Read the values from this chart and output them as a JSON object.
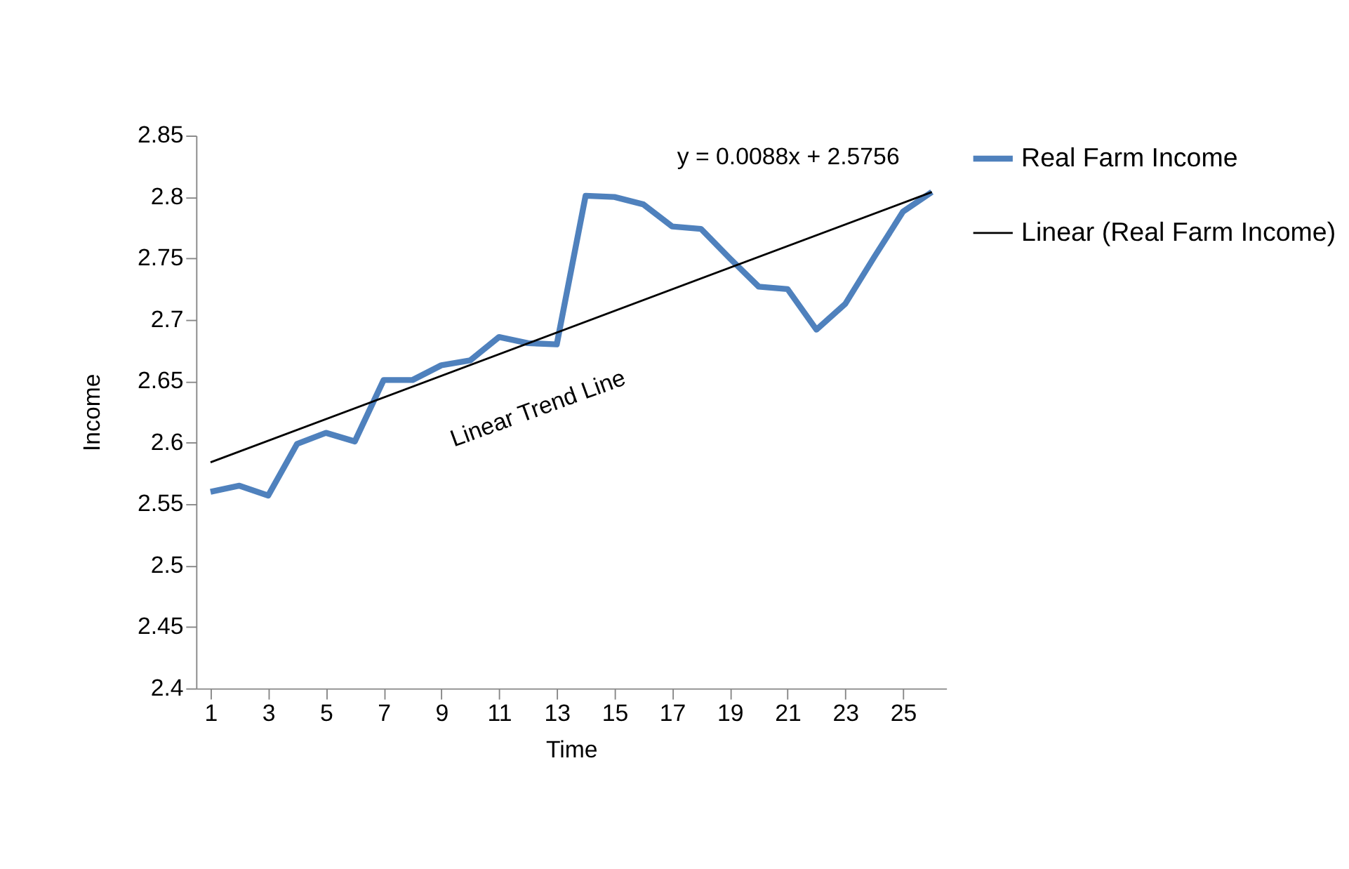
{
  "chart_data": {
    "type": "line",
    "xlabel": "Time",
    "ylabel": "Income",
    "x": [
      1,
      2,
      3,
      4,
      5,
      6,
      7,
      8,
      9,
      10,
      11,
      12,
      13,
      14,
      15,
      16,
      17,
      18,
      19,
      20,
      21,
      22,
      23,
      24,
      25,
      26
    ],
    "series": [
      {
        "name": "Real Farm Income",
        "color": "#4f81bd",
        "values": [
          2.56,
          2.565,
          2.557,
          2.599,
          2.608,
          2.601,
          2.651,
          2.651,
          2.663,
          2.667,
          2.686,
          2.681,
          2.68,
          2.801,
          2.8,
          2.794,
          2.776,
          2.774,
          2.75,
          2.727,
          2.725,
          2.692,
          2.713,
          2.751,
          2.788,
          2.804
        ]
      },
      {
        "name": "Linear (Real Farm Income)",
        "type": "line",
        "color": "#000000",
        "x": [
          1,
          26
        ],
        "values": [
          2.584,
          2.804
        ]
      }
    ],
    "xlim": [
      0.5,
      26.5
    ],
    "xticks": [
      1,
      3,
      5,
      7,
      9,
      11,
      13,
      15,
      17,
      19,
      21,
      23,
      25
    ],
    "ylim": [
      2.4,
      2.85
    ],
    "yticks": [
      2.4,
      2.45,
      2.5,
      2.55,
      2.6,
      2.65,
      2.7,
      2.75,
      2.8,
      2.85
    ],
    "annotations": [
      "y = 0.0088x + 2.5756",
      "Linear Trend Line"
    ],
    "grid": false,
    "legend": "right",
    "marker": "none",
    "line_style": "solid"
  }
}
